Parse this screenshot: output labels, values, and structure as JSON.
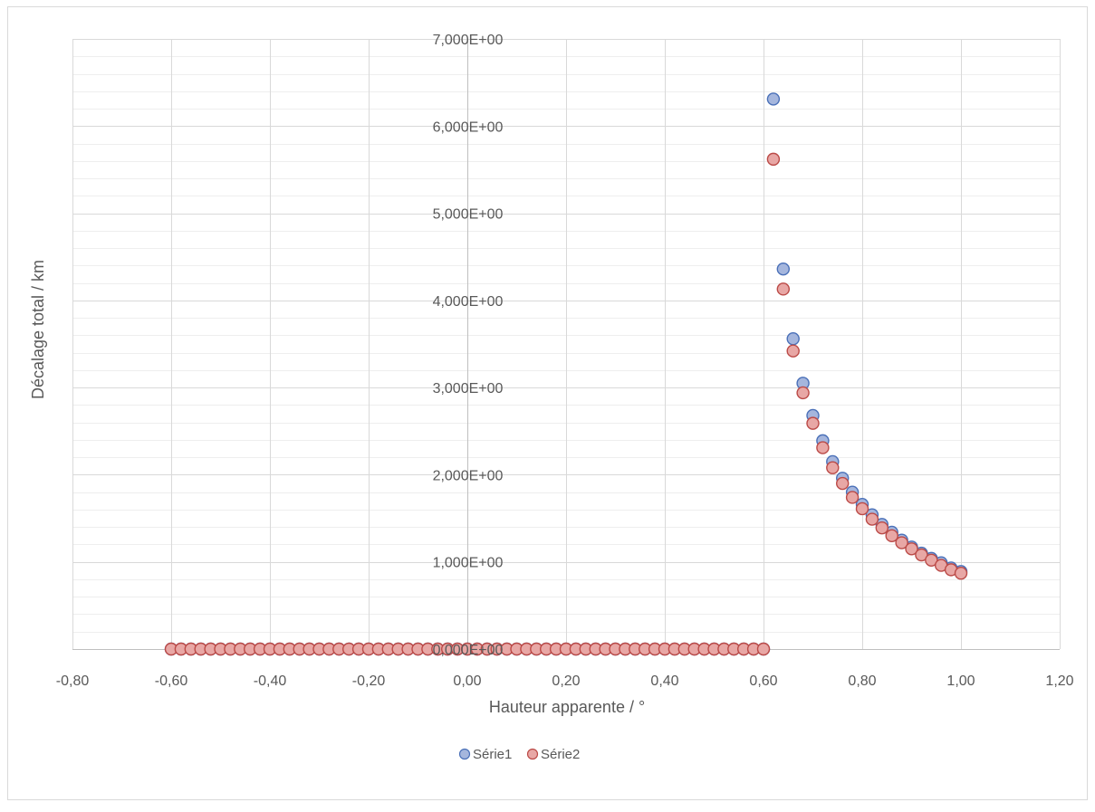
{
  "chart_data": {
    "type": "scatter",
    "title": "",
    "xlabel": "Hauteur apparente / °",
    "ylabel": "Décalage total / km",
    "xlim": [
      -0.8,
      1.2
    ],
    "ylim": [
      0,
      7
    ],
    "x_ticks": [
      -0.8,
      -0.6,
      -0.4,
      -0.2,
      0.0,
      0.2,
      0.4,
      0.6,
      0.8,
      1.0,
      1.2
    ],
    "x_tick_labels": [
      "-0,80",
      "-0,60",
      "-0,40",
      "-0,20",
      "0,00",
      "0,20",
      "0,40",
      "0,60",
      "0,80",
      "1,00",
      "1,20"
    ],
    "y_ticks": [
      0,
      1,
      2,
      3,
      4,
      5,
      6,
      7
    ],
    "y_tick_labels": [
      "0,000E+00",
      "1,000E+00",
      "2,000E+00",
      "3,000E+00",
      "4,000E+00",
      "5,000E+00",
      "6,000E+00",
      "7,000E+00"
    ],
    "y_axis_at_x": 0,
    "major_grid": true,
    "minor_grid": true,
    "legend_position": "bottom",
    "zero_range": {
      "from": -0.6,
      "to": 0.6,
      "step": 0.02,
      "value": 0
    },
    "series": [
      {
        "name": "Série1",
        "color": "#a5b6dd",
        "stroke": "#4a70b8",
        "points": [
          [
            0.62,
            6.31
          ],
          [
            0.64,
            4.36
          ],
          [
            0.66,
            3.56
          ],
          [
            0.68,
            3.05
          ],
          [
            0.7,
            2.68
          ],
          [
            0.72,
            2.39
          ],
          [
            0.74,
            2.15
          ],
          [
            0.76,
            1.96
          ],
          [
            0.78,
            1.8
          ],
          [
            0.8,
            1.66
          ],
          [
            0.82,
            1.54
          ],
          [
            0.84,
            1.43
          ],
          [
            0.86,
            1.34
          ],
          [
            0.88,
            1.25
          ],
          [
            0.9,
            1.17
          ],
          [
            0.92,
            1.1
          ],
          [
            0.94,
            1.04
          ],
          [
            0.96,
            0.99
          ],
          [
            0.98,
            0.93
          ],
          [
            1.0,
            0.89
          ]
        ]
      },
      {
        "name": "Série2",
        "color": "#e8a7a5",
        "stroke": "#bb4a47",
        "points": [
          [
            0.62,
            5.62
          ],
          [
            0.64,
            4.13
          ],
          [
            0.66,
            3.42
          ],
          [
            0.68,
            2.94
          ],
          [
            0.7,
            2.59
          ],
          [
            0.72,
            2.31
          ],
          [
            0.74,
            2.08
          ],
          [
            0.76,
            1.9
          ],
          [
            0.78,
            1.74
          ],
          [
            0.8,
            1.61
          ],
          [
            0.82,
            1.49
          ],
          [
            0.84,
            1.39
          ],
          [
            0.86,
            1.3
          ],
          [
            0.88,
            1.22
          ],
          [
            0.9,
            1.15
          ],
          [
            0.92,
            1.08
          ],
          [
            0.94,
            1.02
          ],
          [
            0.96,
            0.96
          ],
          [
            0.98,
            0.91
          ],
          [
            1.0,
            0.87
          ]
        ]
      }
    ]
  }
}
